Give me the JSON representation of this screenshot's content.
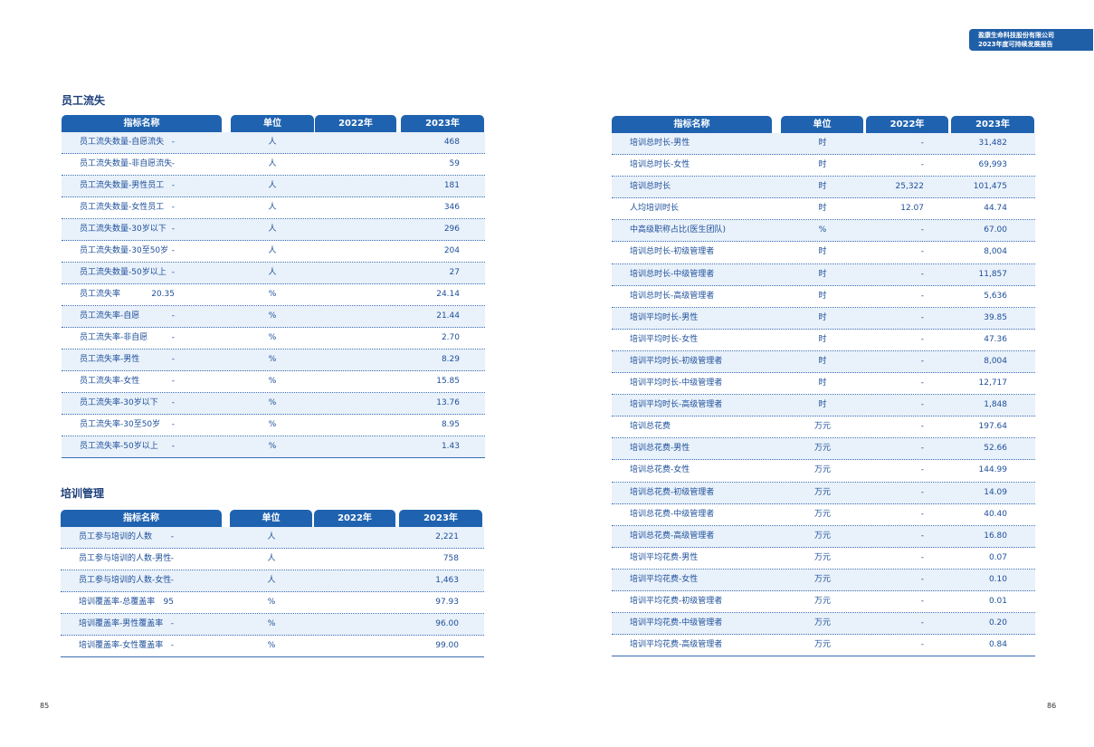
{
  "header": {
    "company": "盈康生命科技股份有限公司",
    "report": "2023年度可持续发展报告"
  },
  "columns": {
    "name": "指标名称",
    "unit": "单位",
    "y2022": "2022年",
    "y2023": "2023年"
  },
  "turnover": {
    "title": "员工流失",
    "rows": [
      {
        "name": "员工流失数量-自愿流失",
        "unit": "人",
        "y2022": "-",
        "y2023": "468"
      },
      {
        "name": "员工流失数量-非自愿流失",
        "unit": "人",
        "y2022": "-",
        "y2023": "59"
      },
      {
        "name": "员工流失数量-男性员工",
        "unit": "人",
        "y2022": "-",
        "y2023": "181"
      },
      {
        "name": "员工流失数量-女性员工",
        "unit": "人",
        "y2022": "-",
        "y2023": "346"
      },
      {
        "name": "员工流失数量-30岁以下",
        "unit": "人",
        "y2022": "-",
        "y2023": "296"
      },
      {
        "name": "员工流失数量-30至50岁",
        "unit": "人",
        "y2022": "-",
        "y2023": "204"
      },
      {
        "name": "员工流失数量-50岁以上",
        "unit": "人",
        "y2022": "-",
        "y2023": "27"
      },
      {
        "name": "员工流失率",
        "unit": "%",
        "y2022": "20.35",
        "y2023": "24.14"
      },
      {
        "name": "员工流失率-自愿",
        "unit": "%",
        "y2022": "-",
        "y2023": "21.44"
      },
      {
        "name": "员工流失率-非自愿",
        "unit": "%",
        "y2022": "-",
        "y2023": "2.70"
      },
      {
        "name": "员工流失率-男性",
        "unit": "%",
        "y2022": "-",
        "y2023": "8.29"
      },
      {
        "name": "员工流失率-女性",
        "unit": "%",
        "y2022": "-",
        "y2023": "15.85"
      },
      {
        "name": "员工流失率-30岁以下",
        "unit": "%",
        "y2022": "-",
        "y2023": "13.76"
      },
      {
        "name": "员工流失率-30至50岁",
        "unit": "%",
        "y2022": "-",
        "y2023": "8.95"
      },
      {
        "name": "员工流失率-50岁以上",
        "unit": "%",
        "y2022": "-",
        "y2023": "1.43"
      }
    ]
  },
  "training": {
    "title": "培训管理",
    "rows": [
      {
        "name": "员工参与培训的人数",
        "unit": "人",
        "y2022": "-",
        "y2023": "2,221"
      },
      {
        "name": "员工参与培训的人数-男性",
        "unit": "人",
        "y2022": "-",
        "y2023": "758"
      },
      {
        "name": "员工参与培训的人数-女性",
        "unit": "人",
        "y2022": "-",
        "y2023": "1,463"
      },
      {
        "name": "培训覆盖率-总覆盖率",
        "unit": "%",
        "y2022": "95",
        "y2023": "97.93"
      },
      {
        "name": "培训覆盖率-男性覆盖率",
        "unit": "%",
        "y2022": "-",
        "y2023": "96.00"
      },
      {
        "name": "培训覆盖率-女性覆盖率",
        "unit": "%",
        "y2022": "-",
        "y2023": "99.00"
      }
    ]
  },
  "training_detail": {
    "rows": [
      {
        "name": "培训总时长-男性",
        "unit": "时",
        "y2022": "-",
        "y2023": "31,482"
      },
      {
        "name": "培训总时长-女性",
        "unit": "时",
        "y2022": "-",
        "y2023": "69,993"
      },
      {
        "name": "培训总时长",
        "unit": "时",
        "y2022": "25,322",
        "y2023": "101,475"
      },
      {
        "name": "人均培训时长",
        "unit": "时",
        "y2022": "12.07",
        "y2023": "44.74"
      },
      {
        "name": "中高级职称占比(医生团队)",
        "unit": "%",
        "y2022": "-",
        "y2023": "67.00"
      },
      {
        "name": "培训总时长-初级管理者",
        "unit": "时",
        "y2022": "-",
        "y2023": "8,004"
      },
      {
        "name": "培训总时长-中级管理者",
        "unit": "时",
        "y2022": "-",
        "y2023": "11,857"
      },
      {
        "name": "培训总时长-高级管理者",
        "unit": "时",
        "y2022": "-",
        "y2023": "5,636"
      },
      {
        "name": "培训平均时长-男性",
        "unit": "时",
        "y2022": "-",
        "y2023": "39.85"
      },
      {
        "name": "培训平均时长-女性",
        "unit": "时",
        "y2022": "-",
        "y2023": "47.36"
      },
      {
        "name": "培训平均时长-初级管理者",
        "unit": "时",
        "y2022": "-",
        "y2023": "8,004"
      },
      {
        "name": "培训平均时长-中级管理者",
        "unit": "时",
        "y2022": "-",
        "y2023": "12,717"
      },
      {
        "name": "培训平均时长-高级管理者",
        "unit": "时",
        "y2022": "-",
        "y2023": "1,848"
      },
      {
        "name": "培训总花费",
        "unit": "万元",
        "y2022": "-",
        "y2023": "197.64"
      },
      {
        "name": "培训总花费-男性",
        "unit": "万元",
        "y2022": "-",
        "y2023": "52.66"
      },
      {
        "name": "培训总花费-女性",
        "unit": "万元",
        "y2022": "-",
        "y2023": "144.99"
      },
      {
        "name": "培训总花费-初级管理者",
        "unit": "万元",
        "y2022": "-",
        "y2023": "14.09"
      },
      {
        "name": "培训总花费-中级管理者",
        "unit": "万元",
        "y2022": "-",
        "y2023": "40.40"
      },
      {
        "name": "培训总花费-高级管理者",
        "unit": "万元",
        "y2022": "-",
        "y2023": "16.80"
      },
      {
        "name": "培训平均花费-男性",
        "unit": "万元",
        "y2022": "-",
        "y2023": "0.07"
      },
      {
        "name": "培训平均花费-女性",
        "unit": "万元",
        "y2022": "-",
        "y2023": "0.10"
      },
      {
        "name": "培训平均花费-初级管理者",
        "unit": "万元",
        "y2022": "-",
        "y2023": "0.01"
      },
      {
        "name": "培训平均花费-中级管理者",
        "unit": "万元",
        "y2022": "-",
        "y2023": "0.20"
      },
      {
        "name": "培训平均花费-高级管理者",
        "unit": "万元",
        "y2022": "-",
        "y2023": "0.84"
      }
    ]
  },
  "pages": {
    "left": "85",
    "right": "86"
  }
}
